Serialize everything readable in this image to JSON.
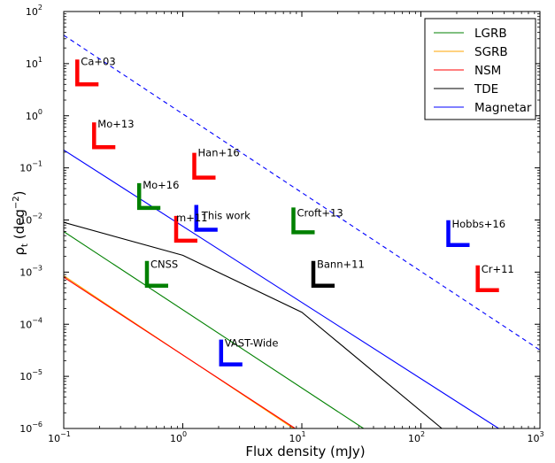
{
  "chart_data": {
    "type": "line",
    "xscale": "log",
    "yscale": "log",
    "xlim": [
      0.1,
      1000
    ],
    "ylim": [
      1e-06,
      100
    ],
    "xlabel": "Flux density (mJy)",
    "ylabel_main": "ρ",
    "ylabel_sub": "t",
    "ylabel_units_open": " (deg",
    "ylabel_units_exp": "−2",
    "ylabel_units_close": ")",
    "x_ticks": [
      {
        "value": 0.1,
        "base": "10",
        "exp": "−1"
      },
      {
        "value": 1,
        "base": "10",
        "exp": "0"
      },
      {
        "value": 10,
        "base": "10",
        "exp": "1"
      },
      {
        "value": 100,
        "base": "10",
        "exp": "2"
      },
      {
        "value": 1000,
        "base": "10",
        "exp": "3"
      }
    ],
    "y_ticks": [
      {
        "value": 1e-06,
        "base": "10",
        "exp": "−6"
      },
      {
        "value": 1e-05,
        "base": "10",
        "exp": "−5"
      },
      {
        "value": 0.0001,
        "base": "10",
        "exp": "−4"
      },
      {
        "value": 0.001,
        "base": "10",
        "exp": "−3"
      },
      {
        "value": 0.01,
        "base": "10",
        "exp": "−2"
      },
      {
        "value": 0.1,
        "base": "10",
        "exp": "−1"
      },
      {
        "value": 1,
        "base": "10",
        "exp": "0"
      },
      {
        "value": 10,
        "base": "10",
        "exp": "1"
      },
      {
        "value": 100,
        "base": "10",
        "exp": "2"
      }
    ],
    "legend_position": "top-right",
    "series": [
      {
        "name": "LGRB",
        "color": "#008000",
        "dashed": false,
        "x": [
          0.1,
          33
        ],
        "y": [
          0.006,
          1e-06
        ],
        "extra": null
      },
      {
        "name": "SGRB",
        "color": "#ffa500",
        "dashed": false,
        "x": [
          0.1,
          8.5
        ],
        "y": [
          0.00085,
          1e-06
        ],
        "extra": null
      },
      {
        "name": "NSM",
        "color": "#ff0000",
        "dashed": false,
        "x": [
          0.1,
          8.8
        ],
        "y": [
          0.0008,
          1e-06
        ],
        "extra": null
      },
      {
        "name": "TDE",
        "color": "#000000",
        "dashed": false,
        "x": [
          0.1,
          1,
          10,
          150
        ],
        "y": [
          0.009,
          0.0021,
          0.00017,
          1e-06
        ],
        "extra": null
      },
      {
        "name": "Magnetar",
        "color": "#0000ff",
        "dashed": false,
        "x": [
          0.1,
          450
        ],
        "y": [
          0.22,
          1e-06
        ],
        "extra": {
          "dashed": true,
          "x": [
            0.1,
            1000
          ],
          "y": [
            35,
            3.2e-05
          ]
        }
      }
    ],
    "limits": [
      {
        "label": "Ca+03",
        "color": "#ff0000",
        "x": 0.13,
        "y": 4.0,
        "label_dx": 4,
        "label_dy": 6
      },
      {
        "label": "Mo+13",
        "color": "#ff0000",
        "x": 0.18,
        "y": 0.25,
        "label_dx": 4,
        "label_dy": 6
      },
      {
        "label": "Han+16",
        "color": "#ff0000",
        "x": 1.25,
        "y": 0.065,
        "label_dx": 4,
        "label_dy": 4
      },
      {
        "label": "Mo+16",
        "color": "#008000",
        "x": 0.43,
        "y": 0.017,
        "label_dx": 4,
        "label_dy": 6
      },
      {
        "label": "This work",
        "color": "#0000ff",
        "x": 1.3,
        "y": 0.0065,
        "label_dx": 6,
        "label_dy": 16
      },
      {
        "label": "m+11",
        "color": "#ff0000",
        "x": 0.88,
        "y": 0.004,
        "label_dx": 0,
        "label_dy": 6
      },
      {
        "label": "Croft+13",
        "color": "#008000",
        "x": 8.5,
        "y": 0.0058,
        "label_dx": 4,
        "label_dy": 10
      },
      {
        "label": "Hobbs+16",
        "color": "#0000ff",
        "x": 170,
        "y": 0.0033,
        "label_dx": 4,
        "label_dy": 8
      },
      {
        "label": "CNSS",
        "color": "#008000",
        "x": 0.5,
        "y": 0.00055,
        "label_dx": 4,
        "label_dy": 8
      },
      {
        "label": "Bann+11",
        "color": "#000000",
        "x": 12.5,
        "y": 0.00055,
        "label_dx": 4,
        "label_dy": 8
      },
      {
        "label": "Cr+11",
        "color": "#ff0000",
        "x": 300,
        "y": 0.00045,
        "label_dx": 4,
        "label_dy": 8
      },
      {
        "label": "VAST-Wide",
        "color": "#0000ff",
        "x": 2.1,
        "y": 1.7e-05,
        "label_dx": 4,
        "label_dy": 8
      }
    ]
  }
}
